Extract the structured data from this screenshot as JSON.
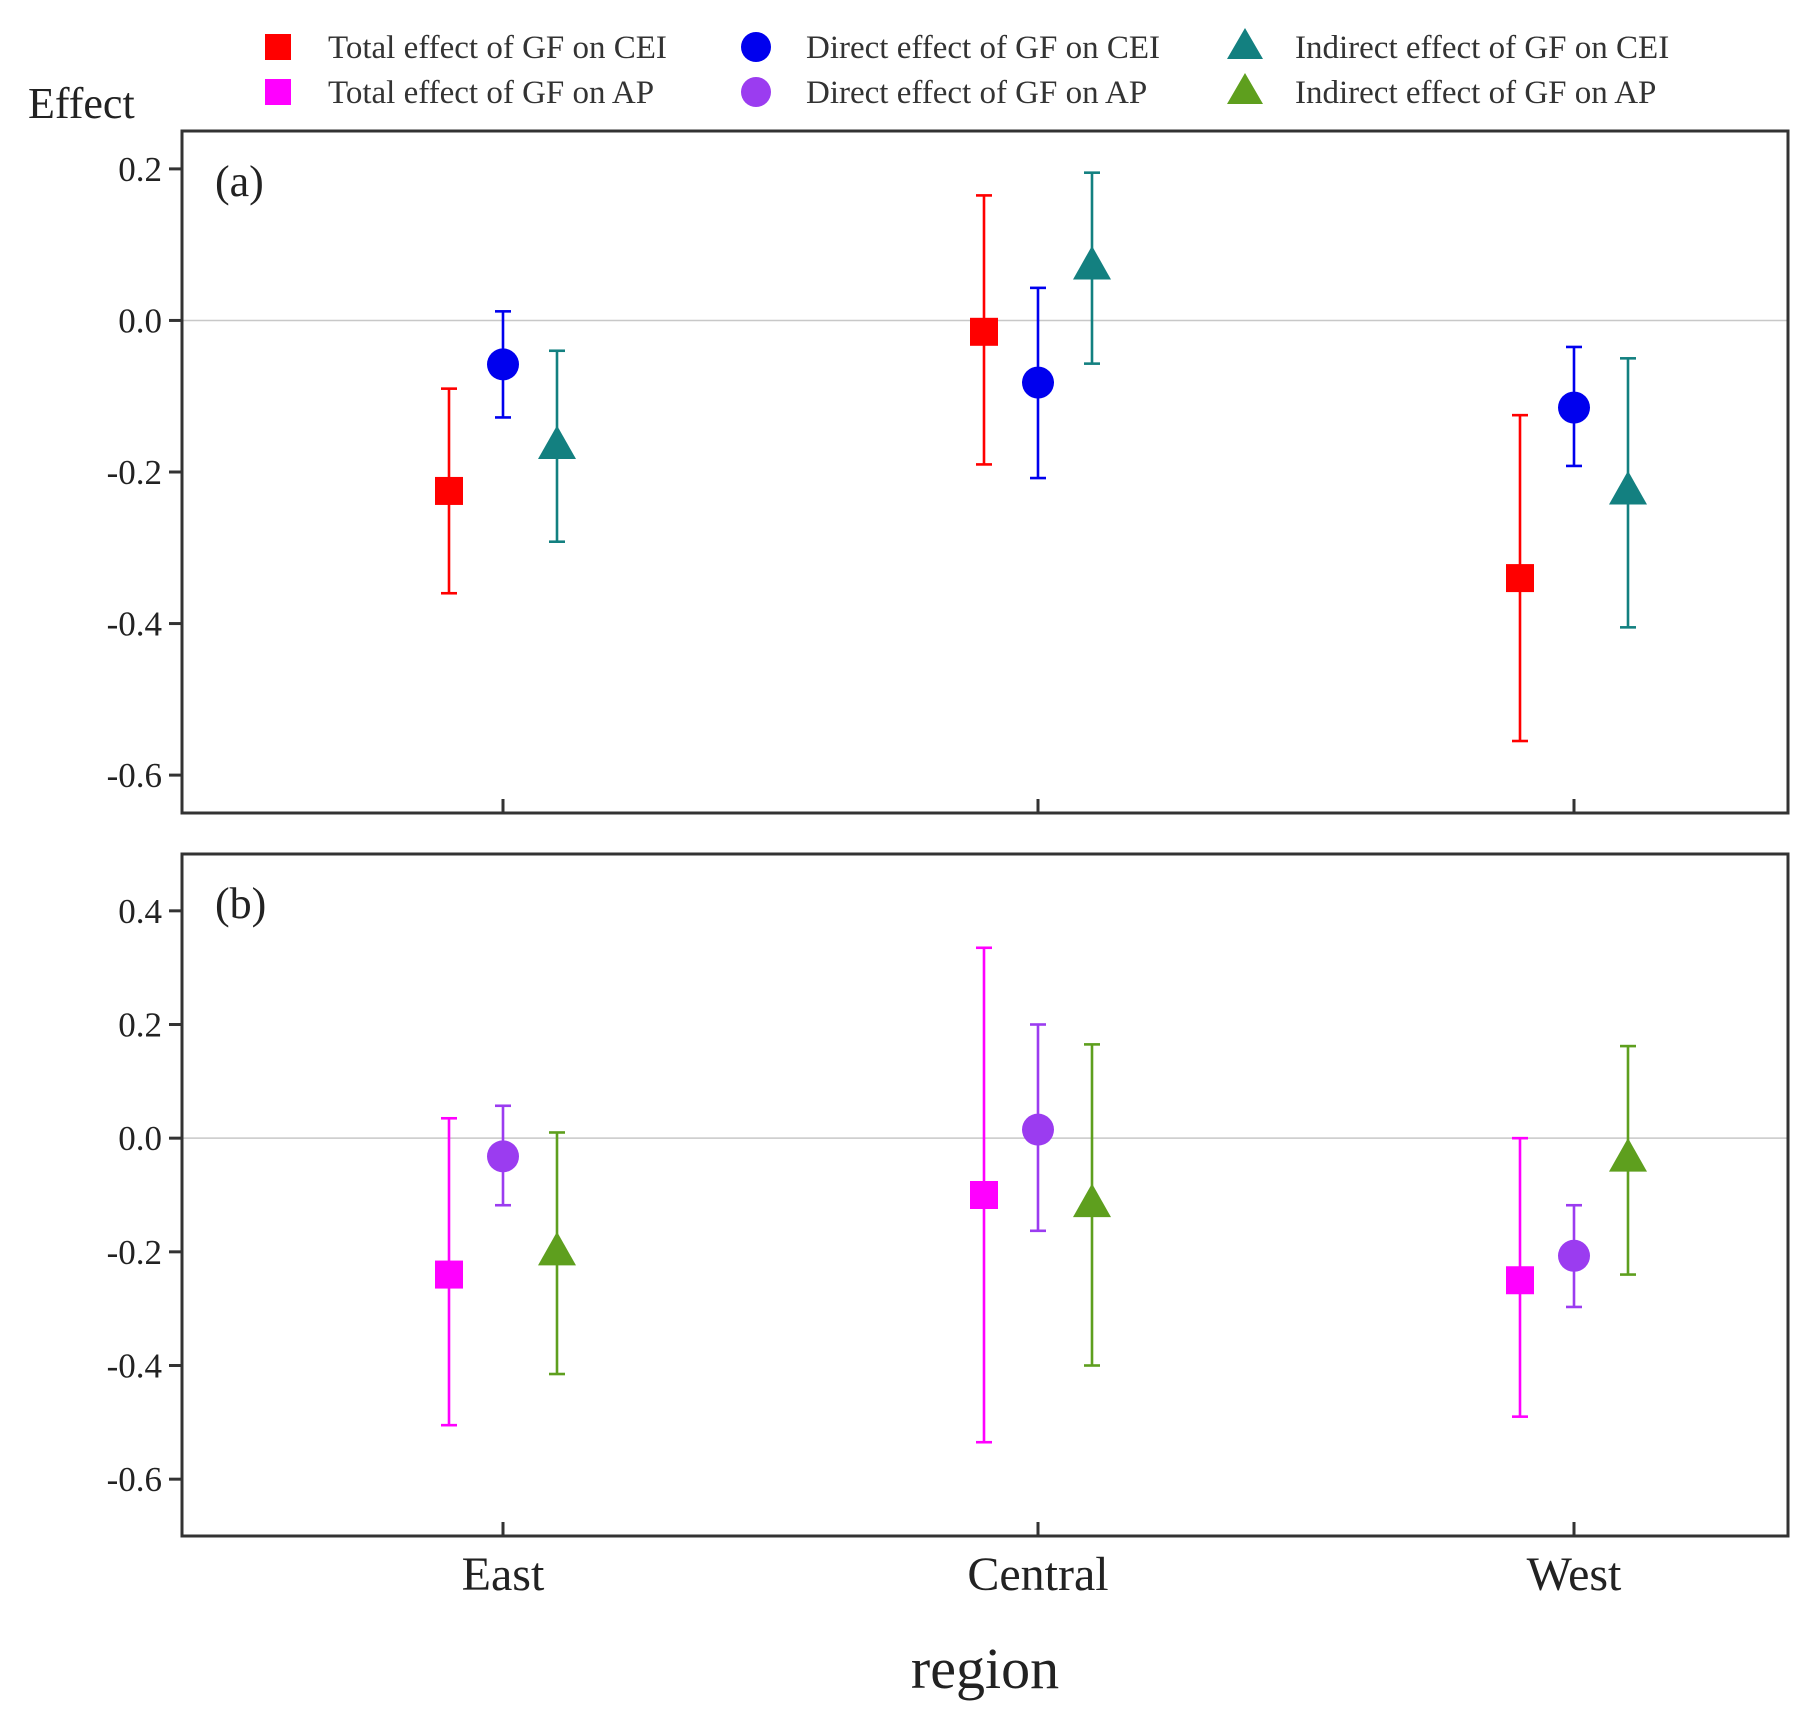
{
  "chart_data": {
    "type": "scatter",
    "subtype": "point-with-error-bars",
    "ylabel": "Effect",
    "xlabel": "region",
    "categories": [
      "East",
      "Central",
      "West"
    ],
    "legend": {
      "placement": "top",
      "entries": [
        {
          "label": "Total effect of GF on CEI",
          "marker": "square",
          "color": "#ff0000"
        },
        {
          "label": "Direct effect of GF on CEI",
          "marker": "circle",
          "color": "#0000ee"
        },
        {
          "label": "Indirect effect of GF on CEI",
          "marker": "triangle",
          "color": "#138080"
        },
        {
          "label": "Total effect of GF on AP",
          "marker": "square",
          "color": "#ff00ff"
        },
        {
          "label": "Direct effect of GF on AP",
          "marker": "circle",
          "color": "#9b3cf0"
        },
        {
          "label": "Indirect effect of GF on AP",
          "marker": "triangle",
          "color": "#5e9f1e"
        }
      ]
    },
    "panels": [
      {
        "label": "(a)",
        "ylim": [
          -0.65,
          0.25
        ],
        "yticks": [
          0.2,
          0.0,
          -0.2,
          -0.4,
          -0.6
        ],
        "ytick_labels": [
          "0.2",
          "0.0",
          "-0.2",
          "-0.4",
          "-0.6"
        ],
        "series": [
          {
            "name": "Total effect of GF on CEI",
            "marker": "square",
            "color": "#ff0000",
            "values": [
              -0.225,
              -0.015,
              -0.34
            ],
            "lower": [
              -0.36,
              -0.19,
              -0.555
            ],
            "upper": [
              -0.09,
              0.165,
              -0.125
            ]
          },
          {
            "name": "Direct effect of GF on CEI",
            "marker": "circle",
            "color": "#0000ee",
            "values": [
              -0.058,
              -0.082,
              -0.115
            ],
            "lower": [
              -0.128,
              -0.208,
              -0.192
            ],
            "upper": [
              0.012,
              0.043,
              -0.035
            ]
          },
          {
            "name": "Indirect effect of GF on CEI",
            "marker": "triangle",
            "color": "#138080",
            "values": [
              -0.165,
              0.072,
              -0.225
            ],
            "lower": [
              -0.292,
              -0.057,
              -0.405
            ],
            "upper": [
              -0.04,
              0.195,
              -0.05
            ]
          }
        ]
      },
      {
        "label": "(b)",
        "ylim": [
          -0.7,
          0.5
        ],
        "yticks": [
          0.4,
          0.2,
          0.0,
          -0.2,
          -0.4,
          -0.6
        ],
        "ytick_labels": [
          "0.4",
          "0.2",
          "0.0",
          "-0.2",
          "-0.4",
          "-0.6"
        ],
        "series": [
          {
            "name": "Total effect of GF on AP",
            "marker": "square",
            "color": "#ff00ff",
            "values": [
              -0.24,
              -0.1,
              -0.25
            ],
            "lower": [
              -0.505,
              -0.535,
              -0.49
            ],
            "upper": [
              0.035,
              0.335,
              0.0
            ]
          },
          {
            "name": "Direct effect of GF on AP",
            "marker": "circle",
            "color": "#9b3cf0",
            "values": [
              -0.032,
              0.015,
              -0.207
            ],
            "lower": [
              -0.118,
              -0.163,
              -0.297
            ],
            "upper": [
              0.057,
              0.2,
              -0.118
            ]
          },
          {
            "name": "Indirect effect of GF on AP",
            "marker": "triangle",
            "color": "#5e9f1e",
            "values": [
              -0.2,
              -0.115,
              -0.035
            ],
            "lower": [
              -0.415,
              -0.4,
              -0.24
            ],
            "upper": [
              0.01,
              0.165,
              0.162
            ]
          }
        ]
      }
    ]
  }
}
